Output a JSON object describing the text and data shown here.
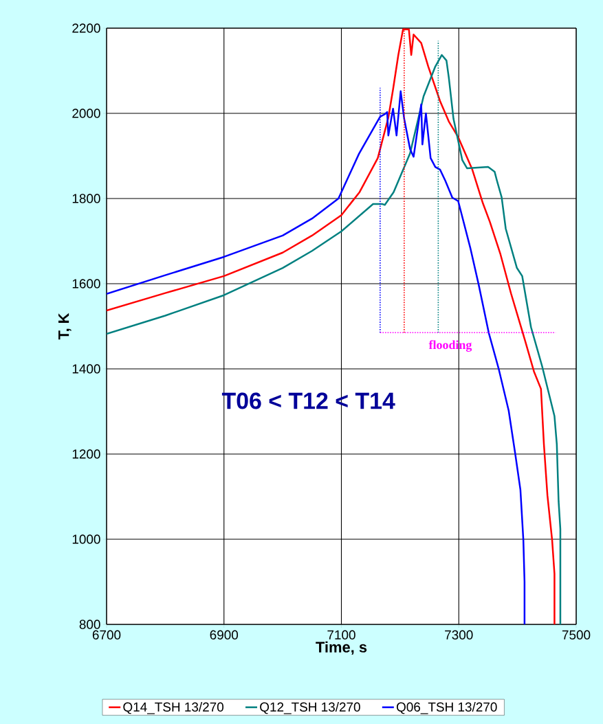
{
  "chart_data": {
    "type": "line",
    "xlabel": "Time, s",
    "ylabel": "T, K",
    "xlim": [
      6700,
      7500
    ],
    "ylim": [
      800,
      2200
    ],
    "xticks": [
      6700,
      6900,
      7100,
      7300,
      7500
    ],
    "yticks": [
      800,
      1000,
      1200,
      1400,
      1600,
      1800,
      2000,
      2200
    ],
    "grid": true,
    "legend": "bottom",
    "annotations": [
      "T06 < T12 < T14",
      "flooding"
    ],
    "series": [
      {
        "name": "Q14_TSH 13/270",
        "color": "#ff0000",
        "x": [
          6700,
          6800,
          6900,
          7000,
          7050,
          7100,
          7131,
          7162,
          7180,
          7188,
          7197,
          7205,
          7215,
          7219,
          7223,
          7236,
          7248,
          7268,
          7283,
          7299,
          7323,
          7341,
          7353,
          7371,
          7389,
          7413,
          7428,
          7440,
          7445,
          7451,
          7459,
          7463,
          7463
        ],
        "values": [
          1537,
          1578,
          1618,
          1673,
          1713,
          1761,
          1815,
          1895,
          1990,
          2056,
          2137,
          2197,
          2197,
          2137,
          2185,
          2165,
          2110,
          2029,
          1981,
          1944,
          1868,
          1789,
          1745,
          1669,
          1577,
          1466,
          1394,
          1353,
          1223,
          1103,
          998,
          919,
          800
        ]
      },
      {
        "name": "Q12_TSH 13/270",
        "color": "#008080",
        "x": [
          6700,
          6800,
          6900,
          7000,
          7050,
          7100,
          7154,
          7170,
          7174,
          7189,
          7217,
          7240,
          7260,
          7271,
          7279,
          7283,
          7291,
          7306,
          7314,
          7350,
          7361,
          7365,
          7373,
          7380,
          7399,
          7408,
          7423,
          7442,
          7463,
          7467,
          7470,
          7473,
          7473
        ],
        "values": [
          1482,
          1525,
          1573,
          1637,
          1677,
          1723,
          1787,
          1787,
          1785,
          1815,
          1906,
          2040,
          2110,
          2137,
          2124,
          2084,
          1987,
          1890,
          1871,
          1874,
          1863,
          1842,
          1803,
          1729,
          1637,
          1618,
          1498,
          1406,
          1289,
          1223,
          1090,
          1024,
          800
        ]
      },
      {
        "name": "Q06_TSH 13/270",
        "color": "#0000ff",
        "x": [
          6700,
          6800,
          6900,
          7000,
          7050,
          7095,
          7130,
          7166,
          7174,
          7178,
          7180,
          7188,
          7194,
          7201,
          7207,
          7217,
          7223,
          7236,
          7238,
          7244,
          7252,
          7260,
          7268,
          7277,
          7289,
          7299,
          7320,
          7334,
          7351,
          7368,
          7385,
          7396,
          7405,
          7410,
          7412,
          7412
        ],
        "values": [
          1576,
          1620,
          1663,
          1713,
          1753,
          1800,
          1905,
          1992,
          1998,
          2003,
          1948,
          2011,
          1948,
          2052,
          1987,
          1916,
          1898,
          2021,
          1927,
          2000,
          1895,
          1874,
          1868,
          1842,
          1802,
          1794,
          1682,
          1597,
          1485,
          1400,
          1302,
          1202,
          1116,
          998,
          900,
          800
        ]
      },
      {
        "color": "#0000ff",
        "line_style": "dotted",
        "x": [
          7166,
          7166
        ],
        "values": [
          1485,
          2060
        ]
      },
      {
        "color": "#ff0000",
        "line_style": "dotted",
        "x": [
          7207,
          7207
        ],
        "values": [
          1485,
          2200
        ]
      },
      {
        "color": "#008080",
        "line_style": "dotted",
        "x": [
          7265,
          7265
        ],
        "values": [
          1485,
          2170
        ]
      },
      {
        "color": "#ff00ff",
        "line_style": "dotted",
        "x": [
          7166,
          7465
        ],
        "values": [
          1485,
          1485
        ]
      }
    ]
  }
}
